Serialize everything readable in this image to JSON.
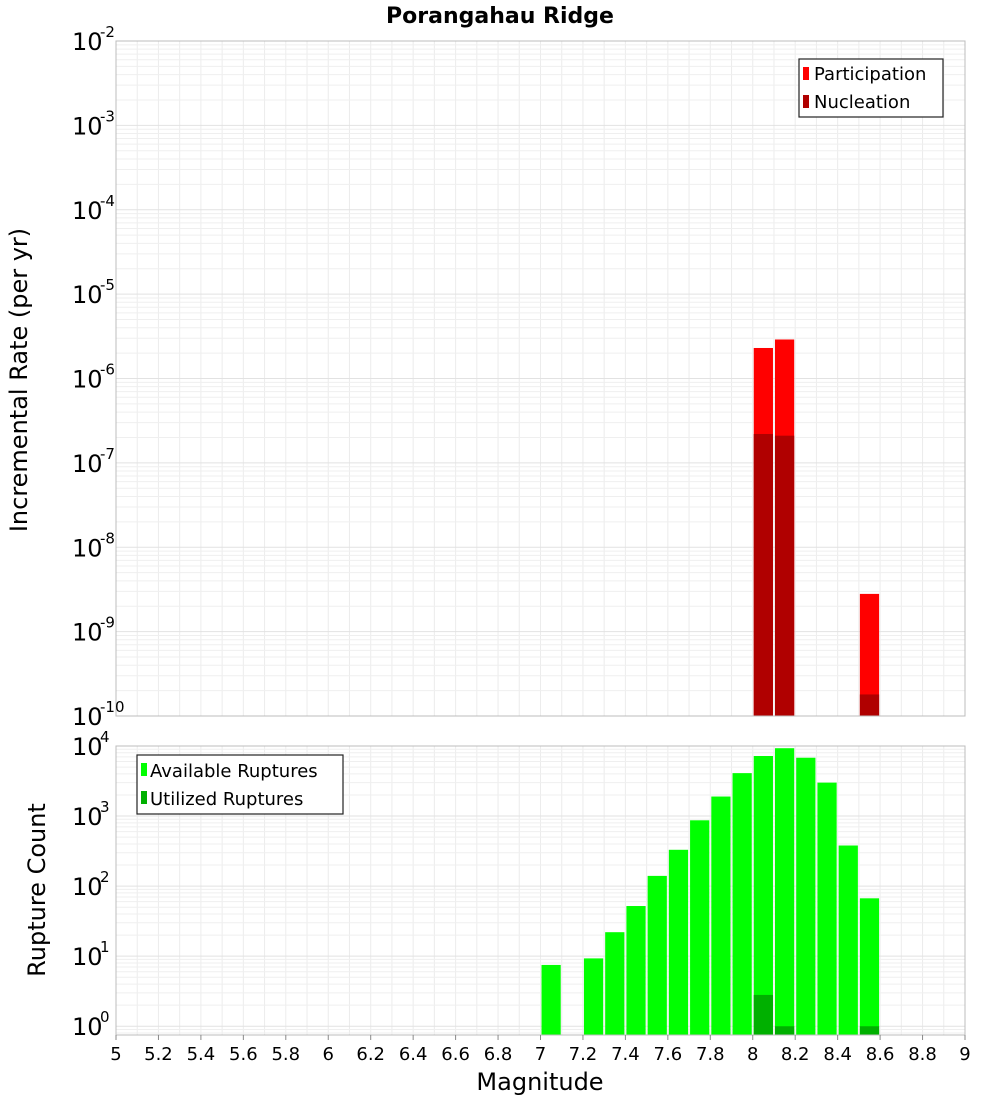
{
  "chart_data": [
    {
      "type": "bar",
      "title": "Porangahau Ridge",
      "xlabel": "",
      "ylabel": "Incremental Rate (per yr)",
      "yscale": "log",
      "xlim": [
        5,
        9
      ],
      "ylim": [
        1e-10,
        0.01
      ],
      "y_ticks": [
        {
          "base": "10",
          "exp": "-10"
        },
        {
          "base": "10",
          "exp": "-9"
        },
        {
          "base": "10",
          "exp": "-8"
        },
        {
          "base": "10",
          "exp": "-7"
        },
        {
          "base": "10",
          "exp": "-6"
        },
        {
          "base": "10",
          "exp": "-5"
        },
        {
          "base": "10",
          "exp": "-4"
        },
        {
          "base": "10",
          "exp": "-3"
        },
        {
          "base": "10",
          "exp": "-2"
        }
      ],
      "legend_position": "top-right",
      "series": [
        {
          "name": "Participation",
          "color": "#ff0000",
          "points": [
            {
              "x": 8.05,
              "y": 2.3e-06
            },
            {
              "x": 8.15,
              "y": 2.9e-06
            },
            {
              "x": 8.55,
              "y": 2.8e-09
            }
          ]
        },
        {
          "name": "Nucleation",
          "color": "#b00000",
          "points": [
            {
              "x": 8.05,
              "y": 2.2e-07
            },
            {
              "x": 8.15,
              "y": 2.1e-07
            },
            {
              "x": 8.55,
              "y": 1.8e-10
            }
          ]
        }
      ]
    },
    {
      "type": "bar",
      "title": "",
      "xlabel": "Magnitude",
      "ylabel": "Rupture Count",
      "yscale": "log",
      "xlim": [
        5,
        9
      ],
      "ylim": [
        0.75,
        10000
      ],
      "y_ticks": [
        {
          "base": "10",
          "exp": "0"
        },
        {
          "base": "10",
          "exp": "1"
        },
        {
          "base": "10",
          "exp": "2"
        },
        {
          "base": "10",
          "exp": "3"
        },
        {
          "base": "10",
          "exp": "4"
        }
      ],
      "x_ticks": [
        "5",
        "5.2",
        "5.4",
        "5.6",
        "5.8",
        "6",
        "6.2",
        "6.4",
        "6.6",
        "6.8",
        "7",
        "7.2",
        "7.4",
        "7.6",
        "7.8",
        "8",
        "8.2",
        "8.4",
        "8.6",
        "8.8",
        "9"
      ],
      "legend_position": "top-left",
      "series": [
        {
          "name": "Available Ruptures",
          "color": "#00ff00",
          "points": [
            {
              "x": 7.05,
              "y": 7.5
            },
            {
              "x": 7.25,
              "y": 9.3
            },
            {
              "x": 7.35,
              "y": 22
            },
            {
              "x": 7.45,
              "y": 52
            },
            {
              "x": 7.55,
              "y": 140
            },
            {
              "x": 7.65,
              "y": 330
            },
            {
              "x": 7.75,
              "y": 870
            },
            {
              "x": 7.85,
              "y": 1900
            },
            {
              "x": 7.95,
              "y": 4100
            },
            {
              "x": 8.05,
              "y": 7200
            },
            {
              "x": 8.15,
              "y": 9300
            },
            {
              "x": 8.25,
              "y": 6800
            },
            {
              "x": 8.35,
              "y": 3000
            },
            {
              "x": 8.45,
              "y": 380
            },
            {
              "x": 8.55,
              "y": 67
            }
          ]
        },
        {
          "name": "Utilized Ruptures",
          "color": "#00b000",
          "points": [
            {
              "x": 8.05,
              "y": 2.8
            },
            {
              "x": 8.15,
              "y": 1.0
            },
            {
              "x": 8.55,
              "y": 1.0
            }
          ]
        }
      ]
    }
  ]
}
